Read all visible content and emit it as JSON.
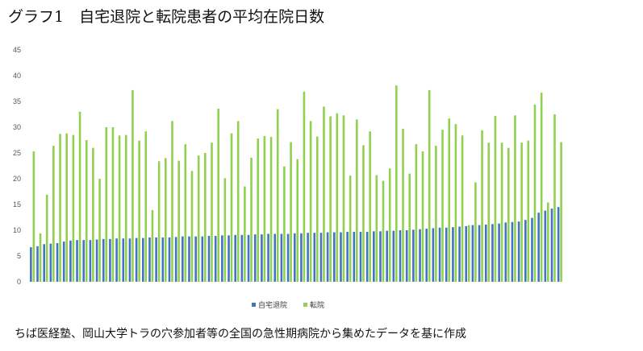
{
  "title": "グラフ1　自宅退院と転院患者の平均在院日数",
  "note": "ちば医経塾、岡山大学トラの穴参加者等の全国の急性期病院から集めたデータを基に作成",
  "chart_data": {
    "type": "bar",
    "title": "",
    "xlabel": "",
    "ylabel": "",
    "ylim": [
      0,
      45
    ],
    "yticks": [
      0,
      5,
      10,
      15,
      20,
      25,
      30,
      35,
      40,
      45
    ],
    "grid": false,
    "legend_position": "bottom",
    "series": [
      {
        "name": "自宅退院",
        "color": "#4472c4",
        "values": [
          6.7,
          6.9,
          7.3,
          7.4,
          7.5,
          7.8,
          8.0,
          8.1,
          8.1,
          8.1,
          8.2,
          8.3,
          8.3,
          8.4,
          8.4,
          8.4,
          8.5,
          8.5,
          8.6,
          8.6,
          8.6,
          8.6,
          8.7,
          8.8,
          8.8,
          8.8,
          8.8,
          8.9,
          8.9,
          9.0,
          9.0,
          9.1,
          9.1,
          9.1,
          9.2,
          9.2,
          9.3,
          9.3,
          9.3,
          9.3,
          9.4,
          9.4,
          9.5,
          9.5,
          9.5,
          9.6,
          9.6,
          9.6,
          9.7,
          9.7,
          9.7,
          9.7,
          9.8,
          9.8,
          9.9,
          9.9,
          10.0,
          10.0,
          10.1,
          10.2,
          10.3,
          10.4,
          10.5,
          10.5,
          10.6,
          10.7,
          10.8,
          11.0,
          11.0,
          11.1,
          11.2,
          11.3,
          11.5,
          11.6,
          11.7,
          12.0,
          12.4,
          13.4,
          13.8,
          14.2,
          14.5
        ]
      },
      {
        "name": "転院",
        "color": "#92d050",
        "values": [
          25.3,
          9.4,
          16.9,
          26.4,
          28.7,
          28.8,
          28.5,
          33.0,
          27.5,
          26.0,
          20.0,
          30.0,
          30.0,
          28.4,
          28.5,
          37.2,
          27.4,
          29.2,
          13.9,
          23.4,
          24.0,
          31.2,
          23.5,
          26.7,
          21.5,
          24.5,
          25.0,
          27.0,
          33.6,
          20.1,
          28.8,
          31.2,
          18.5,
          24.1,
          27.8,
          28.3,
          28.1,
          33.5,
          22.4,
          27.1,
          23.8,
          36.9,
          31.2,
          28.2,
          34.0,
          32.1,
          32.7,
          32.3,
          20.6,
          31.5,
          26.5,
          29.2,
          20.7,
          19.6,
          22.0,
          38.1,
          29.7,
          21.0,
          26.7,
          25.3,
          37.2,
          26.4,
          29.5,
          31.7,
          30.6,
          28.4,
          11.0,
          19.3,
          29.4,
          27.0,
          32.2,
          27.0,
          26.0,
          32.3,
          27.0,
          27.4,
          34.4,
          36.7,
          15.4,
          32.5,
          27.1
        ]
      }
    ]
  }
}
